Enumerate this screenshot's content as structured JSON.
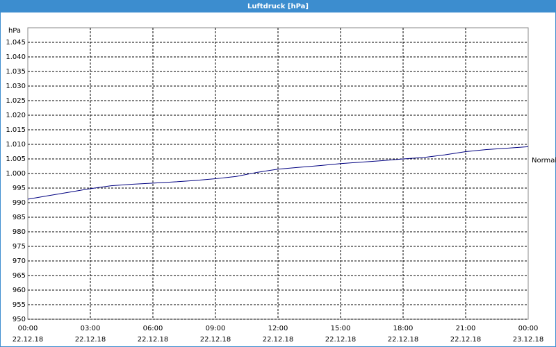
{
  "window_title": "Luftdruck [hPa]",
  "chart_data": {
    "type": "line",
    "y_axis_label": "hPa",
    "x": [
      "22.12.18 00:00",
      "22.12.18 01:00",
      "22.12.18 02:00",
      "22.12.18 03:00",
      "22.12.18 04:00",
      "22.12.18 05:00",
      "22.12.18 06:00",
      "22.12.18 07:00",
      "22.12.18 08:00",
      "22.12.18 09:00",
      "22.12.18 10:00",
      "22.12.18 11:00",
      "22.12.18 12:00",
      "22.12.18 13:00",
      "22.12.18 14:00",
      "22.12.18 15:00",
      "22.12.18 16:00",
      "22.12.18 17:00",
      "22.12.18 18:00",
      "22.12.18 19:00",
      "22.12.18 20:00",
      "22.12.18 21:00",
      "22.12.18 22:00",
      "22.12.18 23:00",
      "23.12.18 00:00"
    ],
    "series": [
      {
        "color": "#000080",
        "values": [
          991.2,
          992.4,
          993.6,
          994.8,
          995.8,
          996.3,
          996.7,
          997.1,
          997.6,
          998.2,
          999.0,
          1000.4,
          1001.5,
          1002.1,
          1002.7,
          1003.4,
          1003.9,
          1004.4,
          1005.0,
          1005.5,
          1006.4,
          1007.5,
          1008.2,
          1008.7,
          1009.2
        ]
      }
    ],
    "xlim": [
      "22.12.18 00:00",
      "23.12.18 00:00"
    ],
    "xticks": [
      {
        "time": "00:00",
        "date": "22.12.18"
      },
      {
        "time": "03:00",
        "date": "22.12.18"
      },
      {
        "time": "06:00",
        "date": "22.12.18"
      },
      {
        "time": "09:00",
        "date": "22.12.18"
      },
      {
        "time": "12:00",
        "date": "22.12.18"
      },
      {
        "time": "15:00",
        "date": "22.12.18"
      },
      {
        "time": "18:00",
        "date": "22.12.18"
      },
      {
        "time": "21:00",
        "date": "22.12.18"
      },
      {
        "time": "00:00",
        "date": "23.12.18"
      }
    ],
    "ylim": [
      950,
      1050
    ],
    "yticks": [
      950,
      955,
      960,
      965,
      970,
      975,
      980,
      985,
      990,
      995,
      {
        "value": 1000,
        "label": "1.000"
      },
      {
        "value": 1005,
        "label": "1.005"
      },
      {
        "value": 1010,
        "label": "1.010"
      },
      {
        "value": 1015,
        "label": "1.015"
      },
      {
        "value": 1020,
        "label": "1.020"
      },
      {
        "value": 1025,
        "label": "1.025"
      },
      {
        "value": 1030,
        "label": "1.030"
      },
      {
        "value": 1035,
        "label": "1.035"
      },
      {
        "value": 1040,
        "label": "1.040"
      },
      {
        "value": 1045,
        "label": "1.045"
      }
    ],
    "reference": {
      "label": "Normal",
      "value": 1004.5
    },
    "grid": true
  }
}
